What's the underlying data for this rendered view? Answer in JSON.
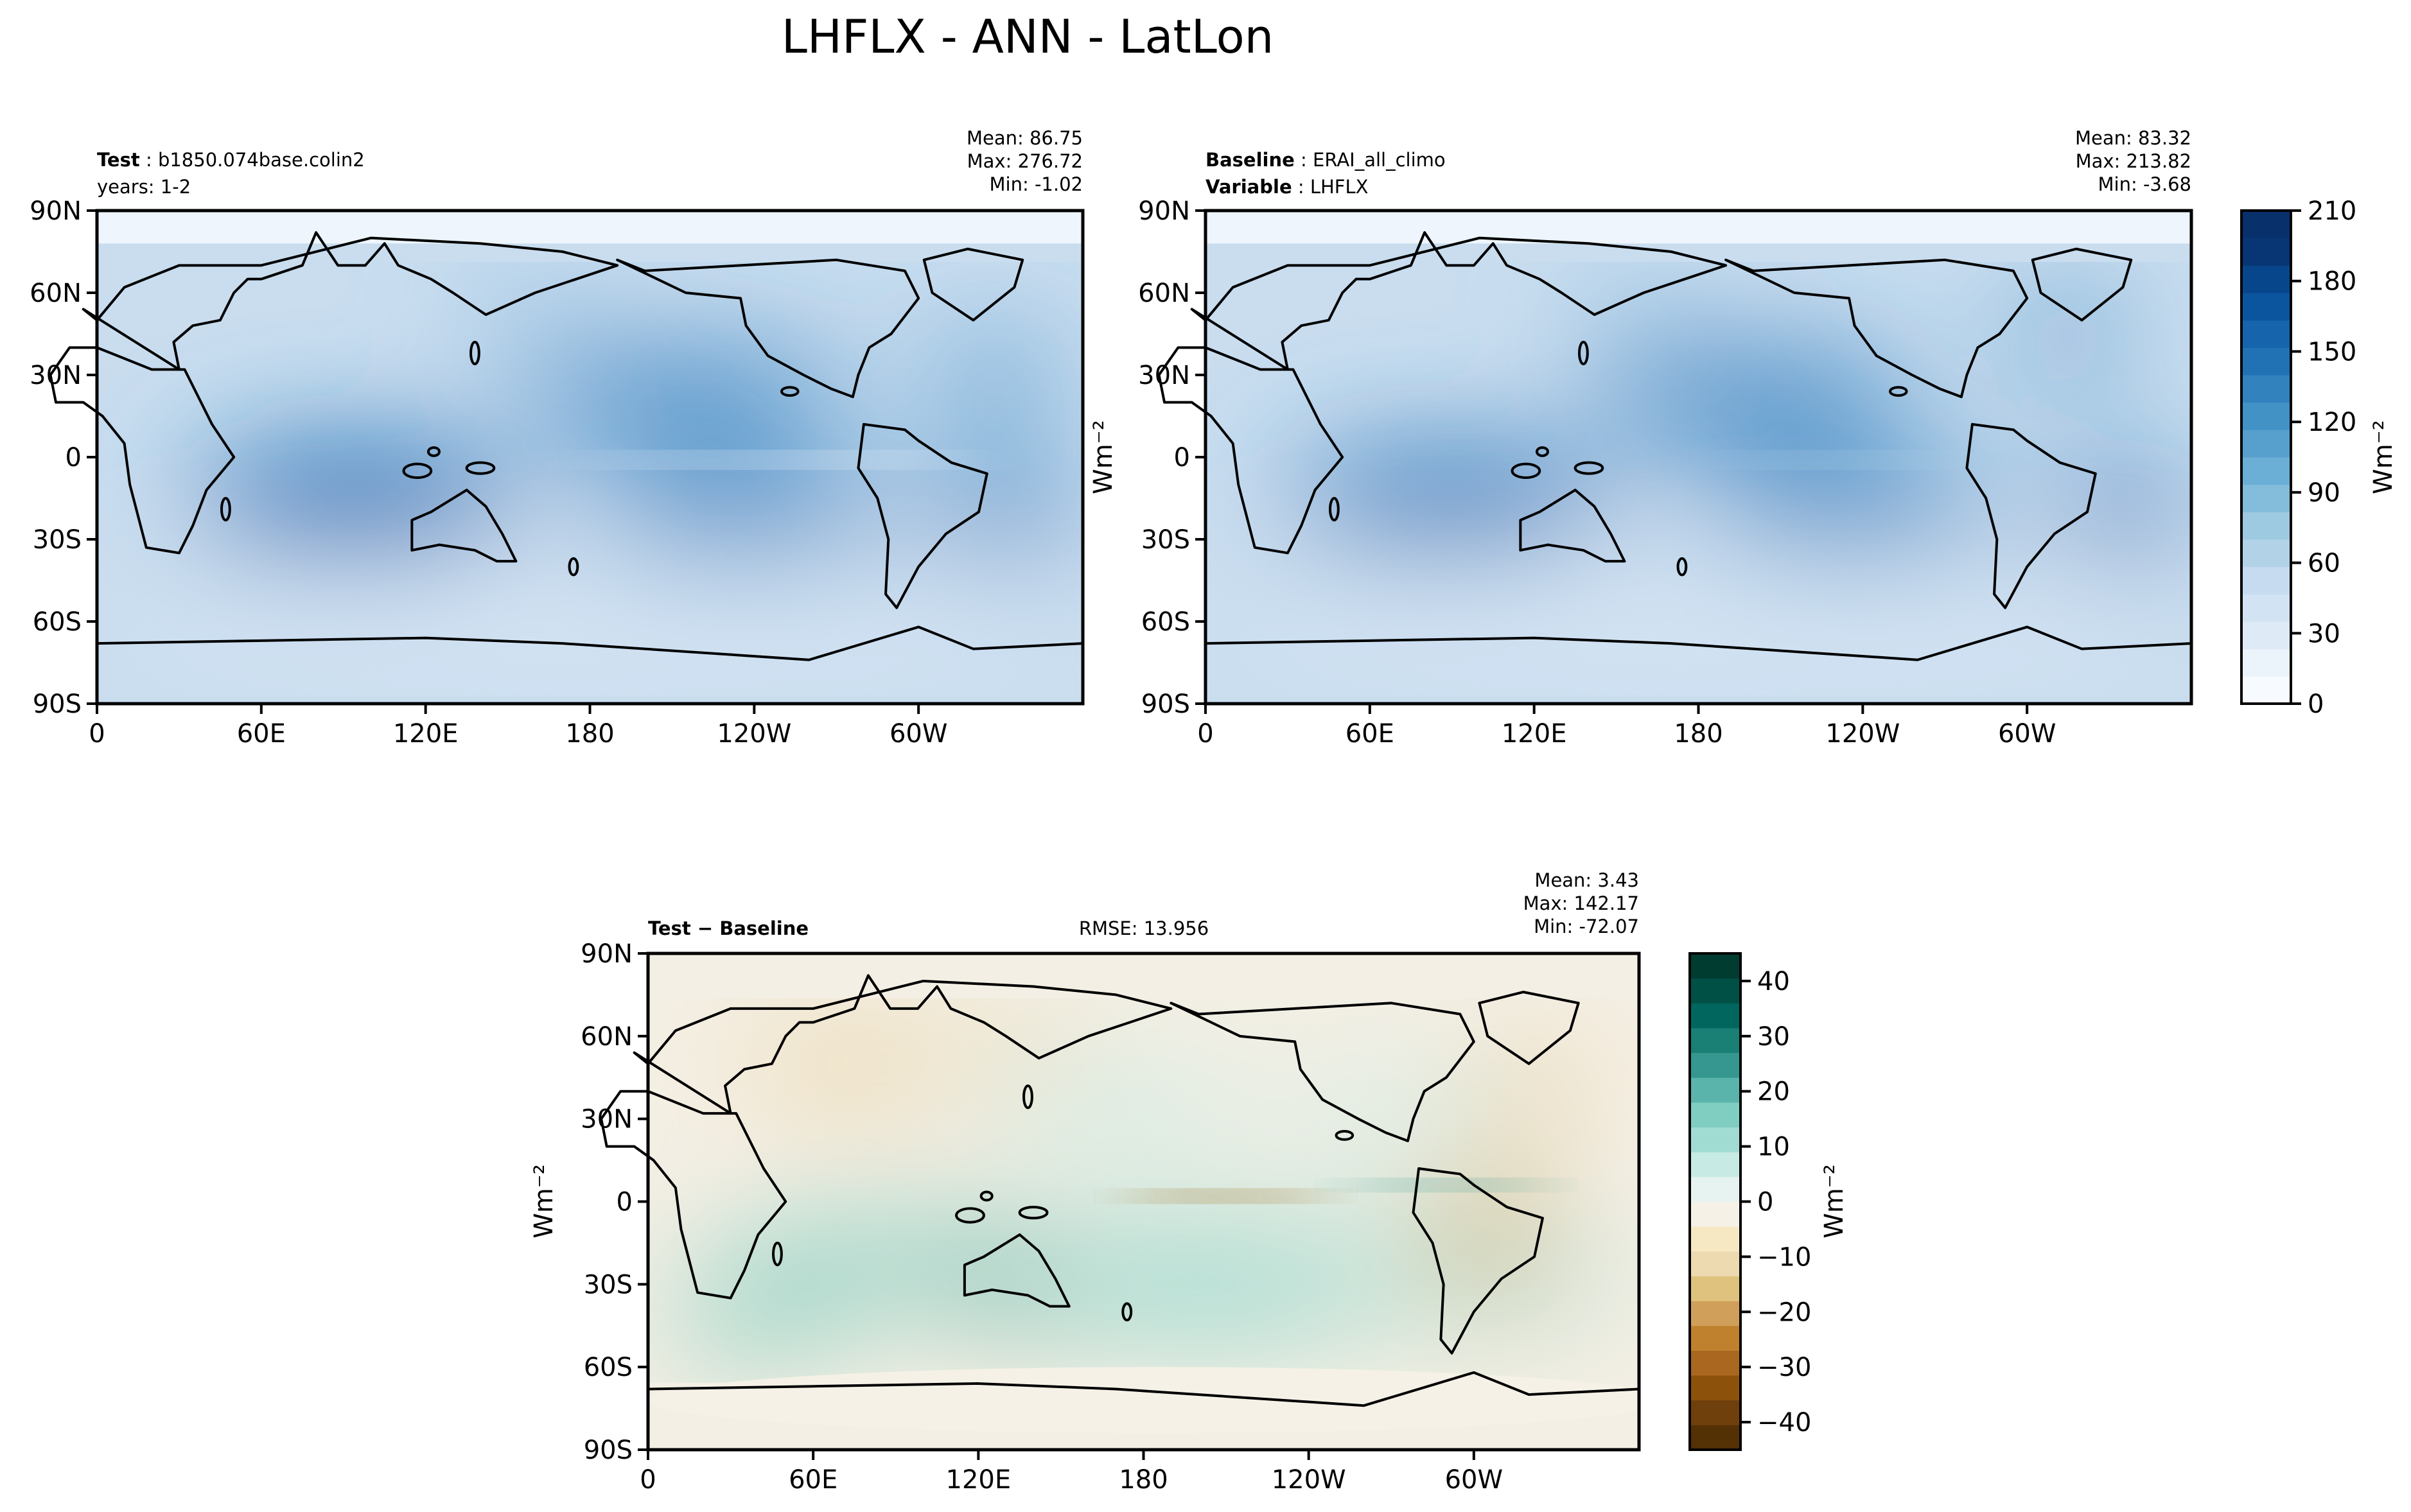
{
  "suptitle": "LHFLX - ANN - LatLon",
  "colors": {
    "blues": [
      "#f7fbff",
      "#ebf3fb",
      "#deebf7",
      "#d2e3f3",
      "#c6dbef",
      "#b2d2e8",
      "#9ecae1",
      "#84bcdb",
      "#6baed6",
      "#57a0ce",
      "#4292c6",
      "#3282be",
      "#2171b5",
      "#1664ab",
      "#0b559f",
      "#08468b",
      "#083674",
      "#08306b"
    ],
    "diverging": [
      "#543005",
      "#6f3f0c",
      "#8c510a",
      "#a96720",
      "#bf812d",
      "#d0a05a",
      "#dfc27d",
      "#eedab0",
      "#f6e8c3",
      "#f5f1e6",
      "#e6f3f0",
      "#c7eae5",
      "#a1dcd3",
      "#80cdc1",
      "#5ab4ac",
      "#35978f",
      "#1a7f74",
      "#01665e",
      "#005045",
      "#003c30"
    ],
    "ocean": "#2f7cbb",
    "coast": "#000000"
  },
  "panels": {
    "test": {
      "label_bold": "Test",
      "label_value": "b1850.074base.colin2",
      "line2": "years: 1-2",
      "mean": "Mean: 86.75",
      "max": "Max: 276.72",
      "min": "Min: -1.02"
    },
    "baseline": {
      "label_bold": "Baseline",
      "label_value": "ERAI_all_climo",
      "line2_bold": "Variable",
      "line2_value": "LHFLX",
      "mean": "Mean: 83.32",
      "max": "Max: 213.82",
      "min": "Min: -3.68"
    },
    "diff": {
      "label_bold": "Test − Baseline",
      "rmse": "RMSE: 13.956",
      "mean": "Mean:  3.43",
      "max": "Max: 142.17",
      "min": "Min: -72.07"
    }
  },
  "units_label": "Wm⁻²",
  "chart_data": [
    {
      "type": "heatmap",
      "panel": "Test",
      "variable": "LHFLX",
      "season": "ANN",
      "xlabel": "",
      "ylabel": "",
      "x_ticks": [
        "0",
        "60E",
        "120E",
        "180",
        "120W",
        "60W"
      ],
      "y_ticks": [
        "90N",
        "60N",
        "30N",
        "0",
        "30S",
        "60S",
        "90S"
      ],
      "xlim": [
        0,
        360
      ],
      "ylim": [
        -90,
        90
      ],
      "stats": {
        "mean": 86.75,
        "max": 276.72,
        "min": -1.02
      },
      "colorbar": {
        "label": "Wm⁻²",
        "ticks": [
          0,
          30,
          60,
          90,
          120,
          150,
          180,
          210
        ],
        "range": [
          0,
          210
        ]
      }
    },
    {
      "type": "heatmap",
      "panel": "Baseline",
      "variable": "LHFLX",
      "season": "ANN",
      "x_ticks": [
        "0",
        "60E",
        "120E",
        "180",
        "120W",
        "60W"
      ],
      "y_ticks": [
        "90N",
        "60N",
        "30N",
        "0",
        "30S",
        "60S",
        "90S"
      ],
      "xlim": [
        0,
        360
      ],
      "ylim": [
        -90,
        90
      ],
      "stats": {
        "mean": 83.32,
        "max": 213.82,
        "min": -3.68
      },
      "colorbar": {
        "label": "Wm⁻²",
        "ticks": [
          0,
          30,
          60,
          90,
          120,
          150,
          180,
          210
        ],
        "range": [
          0,
          210
        ]
      }
    },
    {
      "type": "heatmap",
      "panel": "Test − Baseline",
      "variable": "LHFLX",
      "season": "ANN",
      "x_ticks": [
        "0",
        "60E",
        "120E",
        "180",
        "120W",
        "60W"
      ],
      "y_ticks": [
        "90N",
        "60N",
        "30N",
        "0",
        "30S",
        "60S",
        "90S"
      ],
      "xlim": [
        0,
        360
      ],
      "ylim": [
        -90,
        90
      ],
      "rmse": 13.956,
      "stats": {
        "mean": 3.43,
        "max": 142.17,
        "min": -72.07
      },
      "colorbar": {
        "label": "Wm⁻²",
        "ticks": [
          -40,
          -30,
          -20,
          -10,
          0,
          10,
          20,
          30,
          40
        ],
        "range": [
          -45,
          45
        ]
      }
    }
  ]
}
